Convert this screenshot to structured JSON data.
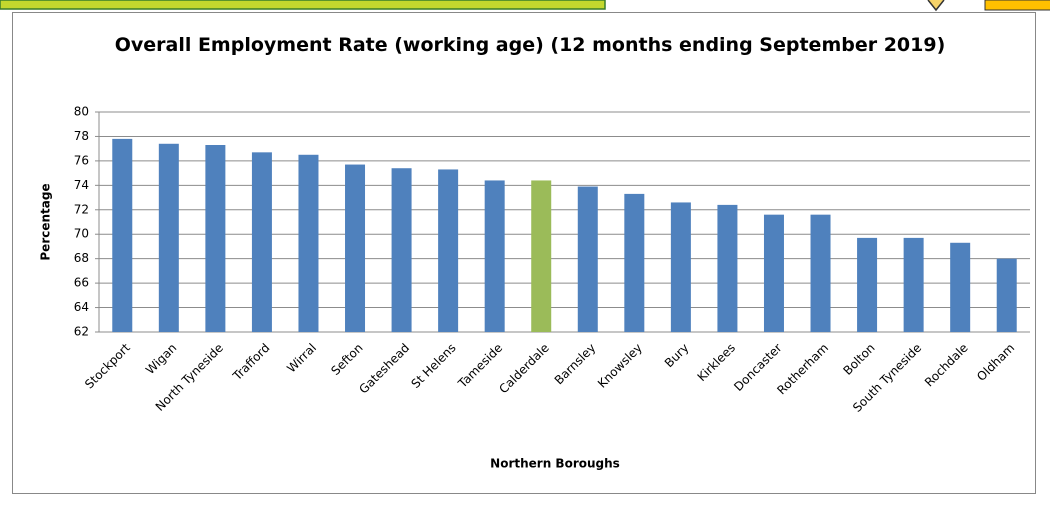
{
  "chart_data": {
    "type": "bar",
    "title": "Overall Employment Rate (working age) (12 months ending September 2019)",
    "x_label": "Northern Boroughs",
    "y_label": "Percentage",
    "categories": [
      "Stockport",
      "Wigan",
      "North Tyneside",
      "Trafford",
      "Wirral",
      "Sefton",
      "Gateshead",
      "St Helens",
      "Tameside",
      "Calderdale",
      "Barnsley",
      "Knowsley",
      "Bury",
      "Kirklees",
      "Doncaster",
      "Rotherham",
      "Bolton",
      "South Tyneside",
      "Rochdale",
      "Oldham"
    ],
    "values": [
      77.8,
      77.4,
      77.3,
      76.7,
      76.5,
      75.7,
      75.4,
      75.3,
      74.4,
      74.4,
      73.9,
      73.3,
      72.6,
      72.4,
      71.6,
      71.6,
      69.7,
      69.7,
      69.3,
      68.0
    ],
    "colors": [
      "#4f81bd",
      "#4f81bd",
      "#4f81bd",
      "#4f81bd",
      "#4f81bd",
      "#4f81bd",
      "#4f81bd",
      "#4f81bd",
      "#4f81bd",
      "#9bbb59",
      "#4f81bd",
      "#4f81bd",
      "#4f81bd",
      "#4f81bd",
      "#4f81bd",
      "#4f81bd",
      "#4f81bd",
      "#4f81bd",
      "#4f81bd",
      "#4f81bd"
    ],
    "ylim": [
      62,
      80
    ],
    "yticks": [
      62,
      64,
      66,
      68,
      70,
      72,
      74,
      76,
      78,
      80
    ],
    "grid": true
  }
}
